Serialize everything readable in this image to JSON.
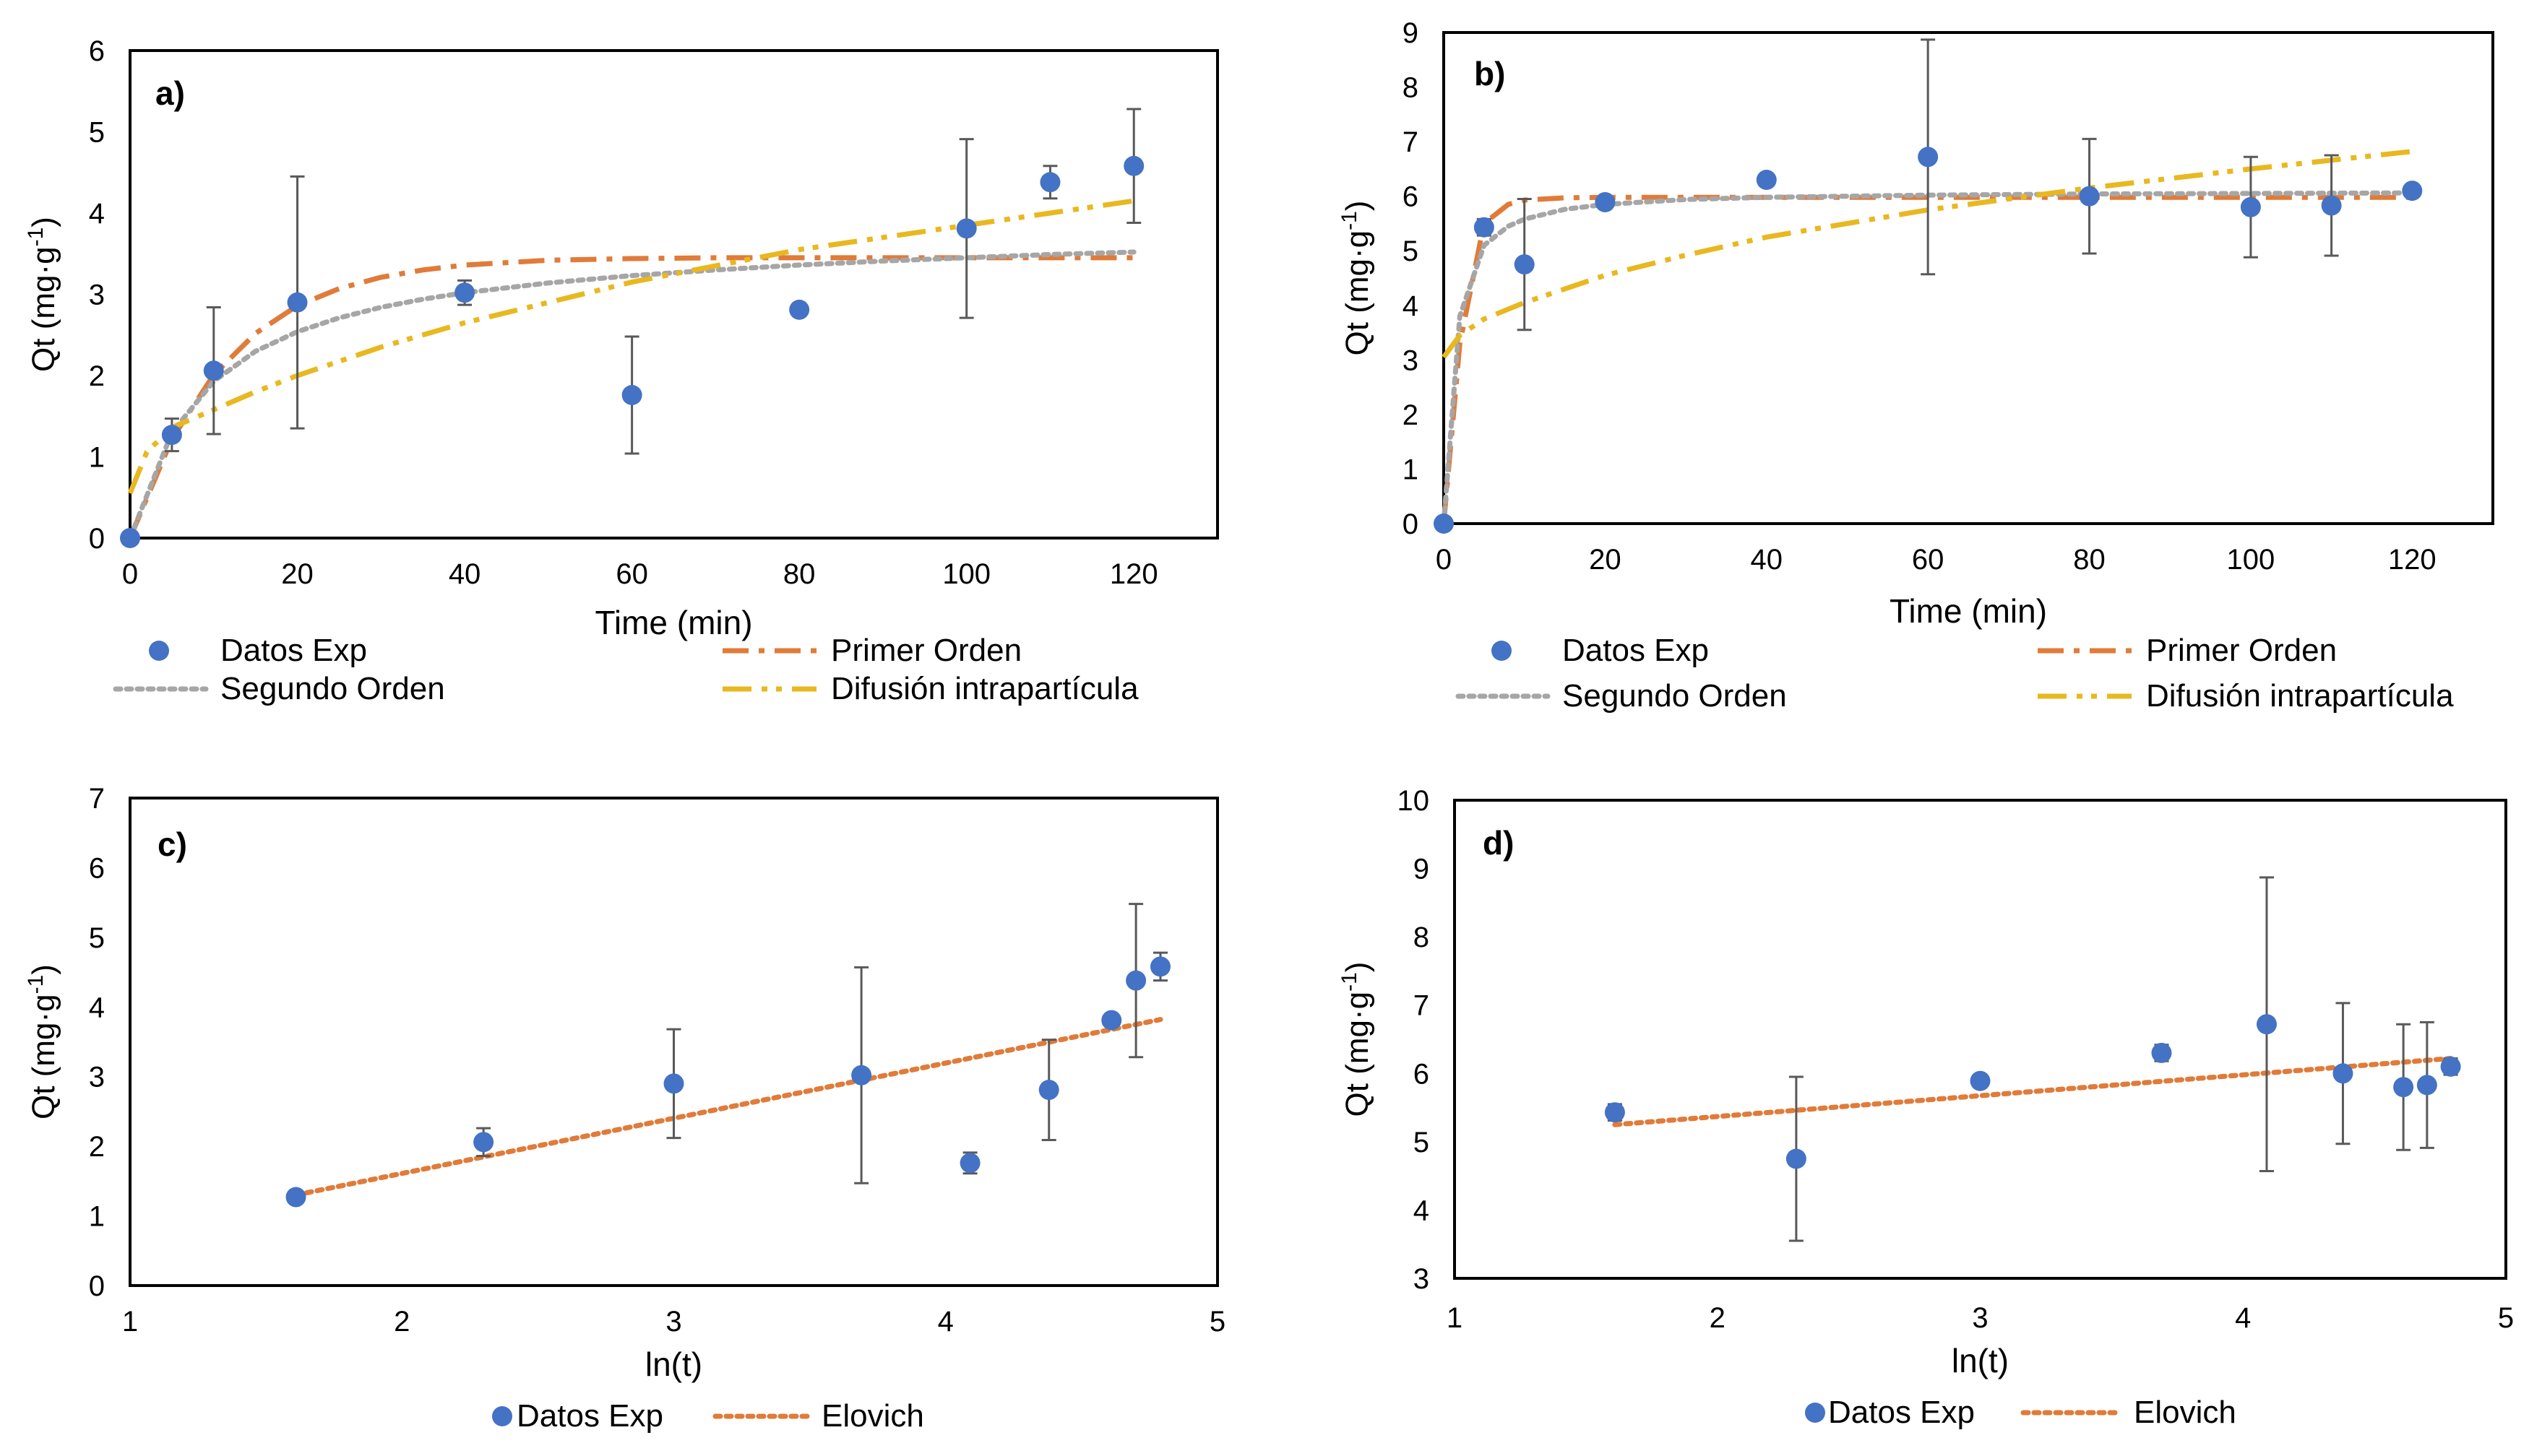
{
  "colors": {
    "points": "#4472C4",
    "primer_orden": "#E07B39",
    "segundo_orden": "#A6A6A6",
    "difusion": "#E8B820",
    "elovich": "#E07B39",
    "axis": "#000000",
    "errorbar": "#595959"
  },
  "chart_data": [
    {
      "panel": "a)",
      "type": "scatter",
      "xlabel": "Time (min)",
      "ylabel": "Qt (mg·g",
      "ylabel_sup": "-1",
      "ylabel_tail": ")",
      "xlim": [
        0,
        130
      ],
      "ylim": [
        0,
        6
      ],
      "xticks": [
        0,
        20,
        40,
        60,
        80,
        100,
        120
      ],
      "yticks": [
        0,
        1,
        2,
        3,
        4,
        5,
        6
      ],
      "points": {
        "name": "Datos Exp",
        "x": [
          0,
          5,
          10,
          20,
          40,
          60,
          80,
          100,
          110,
          120
        ],
        "y": [
          0,
          1.27,
          2.06,
          2.9,
          3.02,
          1.76,
          2.81,
          3.81,
          4.38,
          4.58
        ],
        "err": [
          0,
          0.2,
          0.78,
          1.55,
          0.15,
          0.72,
          0,
          1.1,
          0.2,
          0.7
        ]
      },
      "lines": [
        {
          "name": "Primer Orden",
          "style": "dashdot",
          "color_key": "primer_orden",
          "x": [
            0,
            5,
            10,
            15,
            20,
            25,
            30,
            35,
            40,
            50,
            60,
            70,
            80,
            90,
            100,
            110,
            120
          ],
          "y": [
            0,
            1.22,
            2.01,
            2.52,
            2.86,
            3.07,
            3.21,
            3.3,
            3.36,
            3.42,
            3.44,
            3.45,
            3.45,
            3.45,
            3.45,
            3.45,
            3.45
          ]
        },
        {
          "name": "Segundo Orden",
          "style": "dotted",
          "color_key": "segundo_orden",
          "x": [
            0,
            5,
            10,
            15,
            20,
            25,
            30,
            35,
            40,
            50,
            60,
            70,
            80,
            90,
            100,
            110,
            120
          ],
          "y": [
            0,
            1.3,
            1.93,
            2.3,
            2.54,
            2.71,
            2.84,
            2.94,
            3.02,
            3.14,
            3.23,
            3.3,
            3.36,
            3.41,
            3.45,
            3.49,
            3.52
          ]
        },
        {
          "name": "Difusión intrapartícula",
          "style": "dashdotdot",
          "color_key": "difusion",
          "x": [
            0,
            2,
            5,
            10,
            15,
            20,
            30,
            40,
            50,
            60,
            70,
            80,
            90,
            100,
            110,
            120
          ],
          "y": [
            0.55,
            1.06,
            1.36,
            1.58,
            1.8,
            2.0,
            2.35,
            2.65,
            2.9,
            3.15,
            3.35,
            3.55,
            3.7,
            3.85,
            4.0,
            4.15
          ]
        }
      ],
      "legend": [
        {
          "label": "Datos Exp",
          "kind": "marker"
        },
        {
          "label": "Primer Orden",
          "kind": "primer_orden"
        },
        {
          "label": "Segundo Orden",
          "kind": "segundo_orden"
        },
        {
          "label": "Difusión intrapartícula",
          "kind": "difusion"
        }
      ]
    },
    {
      "panel": "b)",
      "type": "scatter",
      "xlabel": "Time (min)",
      "ylabel": "Qt (mg·g",
      "ylabel_sup": "-1",
      "ylabel_tail": ")",
      "xlim": [
        0,
        130
      ],
      "ylim": [
        0,
        9
      ],
      "xticks": [
        0,
        20,
        40,
        60,
        80,
        100,
        120
      ],
      "yticks": [
        0,
        1,
        2,
        3,
        4,
        5,
        6,
        7,
        8,
        9
      ],
      "points": {
        "name": "Datos Exp",
        "x": [
          0,
          5,
          10,
          20,
          40,
          60,
          80,
          100,
          110,
          120
        ],
        "y": [
          0,
          5.43,
          4.75,
          5.89,
          6.3,
          6.72,
          6.0,
          5.8,
          5.83,
          6.1
        ],
        "err": [
          0,
          0.15,
          1.2,
          0.1,
          0.1,
          2.15,
          1.05,
          0.92,
          0.92,
          0.1
        ]
      },
      "lines": [
        {
          "name": "Primer Orden",
          "style": "dashdot",
          "color_key": "primer_orden",
          "x": [
            0,
            2,
            5,
            8,
            10,
            15,
            20,
            30,
            40,
            60,
            80,
            100,
            120
          ],
          "y": [
            0,
            3.3,
            5.5,
            5.85,
            5.93,
            5.97,
            5.98,
            5.98,
            5.98,
            5.98,
            5.98,
            5.98,
            5.98
          ]
        },
        {
          "name": "Segundo Orden",
          "style": "dotted",
          "color_key": "segundo_orden",
          "x": [
            0,
            2,
            5,
            8,
            10,
            15,
            20,
            30,
            40,
            60,
            80,
            100,
            120
          ],
          "y": [
            0,
            3.8,
            5.1,
            5.45,
            5.58,
            5.76,
            5.85,
            5.94,
            5.98,
            6.02,
            6.04,
            6.05,
            6.06
          ]
        },
        {
          "name": "Difusión intrapartícula",
          "style": "dashdotdot",
          "color_key": "difusion",
          "x": [
            0,
            2,
            5,
            10,
            20,
            30,
            40,
            60,
            80,
            100,
            120
          ],
          "y": [
            3.05,
            3.45,
            3.75,
            4.05,
            4.55,
            4.92,
            5.25,
            5.75,
            6.15,
            6.5,
            6.82
          ]
        }
      ],
      "legend": [
        {
          "label": "Datos Exp",
          "kind": "marker"
        },
        {
          "label": "Primer Orden",
          "kind": "primer_orden"
        },
        {
          "label": "Segundo Orden",
          "kind": "segundo_orden"
        },
        {
          "label": "Difusión intrapartícula",
          "kind": "difusion"
        }
      ]
    },
    {
      "panel": "c)",
      "type": "scatter",
      "xlabel": "ln(t)",
      "ylabel": "Qt (mg·g",
      "ylabel_sup": "-1",
      "ylabel_tail": ")",
      "xlim": [
        1,
        5
      ],
      "ylim": [
        0,
        7
      ],
      "xticks": [
        1,
        2,
        3,
        4,
        5
      ],
      "yticks": [
        0,
        1,
        2,
        3,
        4,
        5,
        6,
        7
      ],
      "points": {
        "name": "Datos Exp",
        "x": [
          1.61,
          2.3,
          3.0,
          3.69,
          4.09,
          4.38,
          4.61,
          4.7,
          4.79
        ],
        "y": [
          1.27,
          2.06,
          2.9,
          3.02,
          1.76,
          2.81,
          3.81,
          4.38,
          4.58
        ],
        "err": [
          0,
          0.2,
          0.78,
          1.55,
          0.15,
          0.72,
          0,
          1.1,
          0.2
        ]
      },
      "lines": [
        {
          "name": "Elovich",
          "style": "dotted",
          "color_key": "elovich",
          "x": [
            1.61,
            4.79
          ],
          "y": [
            1.3,
            3.82
          ]
        }
      ],
      "legend": [
        {
          "label": "Datos Exp",
          "kind": "marker"
        },
        {
          "label": "Elovich",
          "kind": "elovich"
        }
      ]
    },
    {
      "panel": "d)",
      "type": "scatter",
      "xlabel": "ln(t)",
      "ylabel": "Qt (mg·g",
      "ylabel_sup": "-1",
      "ylabel_tail": ")",
      "xlim": [
        1,
        5
      ],
      "ylim": [
        3,
        10
      ],
      "xticks": [
        1,
        2,
        3,
        4,
        5
      ],
      "yticks": [
        3,
        4,
        5,
        6,
        7,
        8,
        9,
        10
      ],
      "points": {
        "name": "Datos Exp",
        "x": [
          1.61,
          2.3,
          3.0,
          3.69,
          4.09,
          4.38,
          4.61,
          4.7,
          4.79
        ],
        "y": [
          5.43,
          4.75,
          5.89,
          6.3,
          6.72,
          6.0,
          5.8,
          5.83,
          6.1
        ],
        "err": [
          0.12,
          1.2,
          0.07,
          0.12,
          2.15,
          1.03,
          0.92,
          0.92,
          0.12
        ]
      },
      "lines": [
        {
          "name": "Elovich",
          "style": "dotted",
          "color_key": "elovich",
          "x": [
            1.61,
            4.79
          ],
          "y": [
            5.25,
            6.22
          ]
        }
      ],
      "legend": [
        {
          "label": "Datos Exp",
          "kind": "marker"
        },
        {
          "label": "Elovich",
          "kind": "elovich"
        }
      ]
    }
  ]
}
